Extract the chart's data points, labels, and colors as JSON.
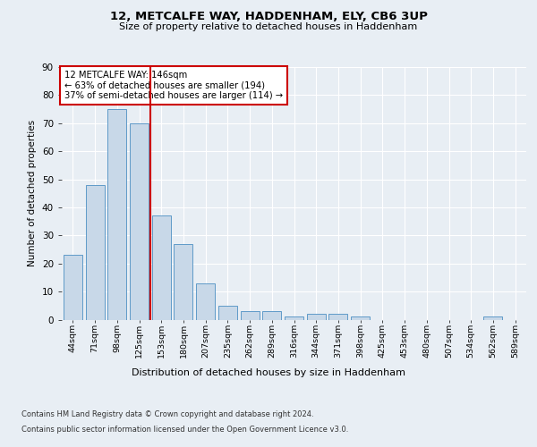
{
  "title_line1": "12, METCALFE WAY, HADDENHAM, ELY, CB6 3UP",
  "title_line2": "Size of property relative to detached houses in Haddenham",
  "xlabel": "Distribution of detached houses by size in Haddenham",
  "ylabel": "Number of detached properties",
  "categories": [
    "44sqm",
    "71sqm",
    "98sqm",
    "125sqm",
    "153sqm",
    "180sqm",
    "207sqm",
    "235sqm",
    "262sqm",
    "289sqm",
    "316sqm",
    "344sqm",
    "371sqm",
    "398sqm",
    "425sqm",
    "453sqm",
    "480sqm",
    "507sqm",
    "534sqm",
    "562sqm",
    "589sqm"
  ],
  "values": [
    23,
    48,
    75,
    70,
    37,
    27,
    13,
    5,
    3,
    3,
    1,
    2,
    2,
    1,
    0,
    0,
    0,
    0,
    0,
    1,
    0
  ],
  "bar_color": "#c8d8e8",
  "bar_edge_color": "#5f9ac8",
  "property_line_x": 3.5,
  "annotation_line1": "12 METCALFE WAY: 146sqm",
  "annotation_line2": "← 63% of detached houses are smaller (194)",
  "annotation_line3": "37% of semi-detached houses are larger (114) →",
  "annotation_box_color": "#ffffff",
  "annotation_box_edge": "#cc0000",
  "vline_color": "#cc0000",
  "ylim": [
    0,
    90
  ],
  "yticks": [
    0,
    10,
    20,
    30,
    40,
    50,
    60,
    70,
    80,
    90
  ],
  "footer_line1": "Contains HM Land Registry data © Crown copyright and database right 2024.",
  "footer_line2": "Contains public sector information licensed under the Open Government Licence v3.0.",
  "background_color": "#e8eef4",
  "plot_bg_color": "#e8eef4"
}
